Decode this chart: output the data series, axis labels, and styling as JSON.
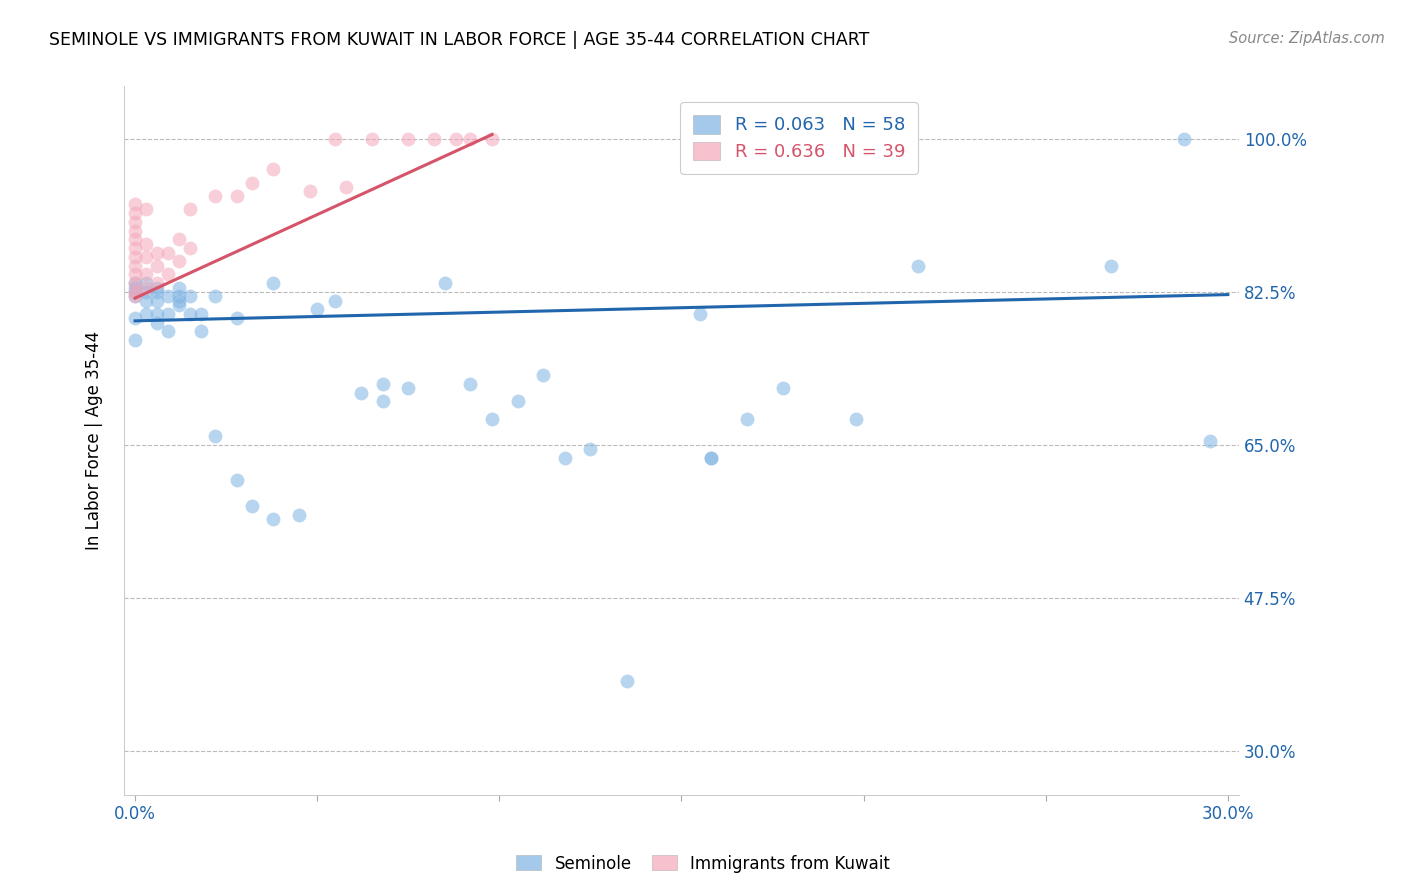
{
  "title": "SEMINOLE VS IMMIGRANTS FROM KUWAIT IN LABOR FORCE | AGE 35-44 CORRELATION CHART",
  "source": "Source: ZipAtlas.com",
  "ylabel": "In Labor Force | Age 35-44",
  "xlim": [
    -0.003,
    0.303
  ],
  "ylim": [
    0.25,
    1.06
  ],
  "xticks": [
    0.0,
    0.05,
    0.1,
    0.15,
    0.2,
    0.25,
    0.3
  ],
  "xticklabels": [
    "0.0%",
    "",
    "",
    "",
    "",
    "",
    "30.0%"
  ],
  "ytick_positions": [
    0.3,
    0.475,
    0.65,
    0.825,
    1.0
  ],
  "yticklabels_right": [
    "30.0%",
    "47.5%",
    "65.0%",
    "82.5%",
    "100.0%"
  ],
  "blue_R": 0.063,
  "blue_N": 58,
  "pink_R": 0.636,
  "pink_N": 39,
  "blue_color": "#7EB3E3",
  "pink_color": "#F4A7B9",
  "blue_line_color": "#2166AC",
  "pink_line_color": "#D6546A",
  "background_color": "#FFFFFF",
  "grid_color": "#BBBBBB",
  "blue_scatter_x": [
    0.0,
    0.0,
    0.0,
    0.0,
    0.0,
    0.0,
    0.003,
    0.003,
    0.003,
    0.003,
    0.006,
    0.006,
    0.006,
    0.006,
    0.006,
    0.009,
    0.009,
    0.009,
    0.012,
    0.012,
    0.012,
    0.012,
    0.015,
    0.015,
    0.018,
    0.018,
    0.022,
    0.022,
    0.028,
    0.028,
    0.032,
    0.038,
    0.038,
    0.045,
    0.05,
    0.055,
    0.062,
    0.068,
    0.068,
    0.075,
    0.085,
    0.092,
    0.098,
    0.105,
    0.112,
    0.118,
    0.125,
    0.135,
    0.155,
    0.158,
    0.158,
    0.168,
    0.178,
    0.198,
    0.215,
    0.268,
    0.288,
    0.295
  ],
  "blue_scatter_y": [
    0.82,
    0.825,
    0.83,
    0.835,
    0.77,
    0.795,
    0.8,
    0.815,
    0.825,
    0.835,
    0.79,
    0.8,
    0.815,
    0.825,
    0.83,
    0.78,
    0.8,
    0.82,
    0.81,
    0.815,
    0.82,
    0.83,
    0.8,
    0.82,
    0.78,
    0.8,
    0.66,
    0.82,
    0.61,
    0.795,
    0.58,
    0.565,
    0.835,
    0.57,
    0.805,
    0.815,
    0.71,
    0.7,
    0.72,
    0.715,
    0.835,
    0.72,
    0.68,
    0.7,
    0.73,
    0.635,
    0.645,
    0.38,
    0.8,
    0.635,
    0.635,
    0.68,
    0.715,
    0.68,
    0.855,
    0.855,
    1.0,
    0.655
  ],
  "pink_scatter_x": [
    0.0,
    0.0,
    0.0,
    0.0,
    0.0,
    0.0,
    0.0,
    0.0,
    0.0,
    0.0,
    0.0,
    0.0,
    0.003,
    0.003,
    0.003,
    0.003,
    0.003,
    0.006,
    0.006,
    0.006,
    0.009,
    0.009,
    0.012,
    0.012,
    0.015,
    0.015,
    0.022,
    0.028,
    0.032,
    0.038,
    0.048,
    0.055,
    0.058,
    0.065,
    0.075,
    0.082,
    0.088,
    0.092,
    0.098
  ],
  "pink_scatter_y": [
    0.82,
    0.825,
    0.835,
    0.845,
    0.855,
    0.865,
    0.875,
    0.885,
    0.895,
    0.905,
    0.915,
    0.925,
    0.83,
    0.845,
    0.865,
    0.88,
    0.92,
    0.835,
    0.855,
    0.87,
    0.845,
    0.87,
    0.86,
    0.885,
    0.875,
    0.92,
    0.935,
    0.935,
    0.95,
    0.965,
    0.94,
    1.0,
    0.945,
    1.0,
    1.0,
    1.0,
    1.0,
    1.0,
    1.0
  ],
  "blue_trendline_x": [
    0.0,
    0.3
  ],
  "blue_trendline_y": [
    0.792,
    0.822
  ],
  "pink_trendline_x": [
    0.0,
    0.098
  ],
  "pink_trendline_y": [
    0.818,
    1.005
  ]
}
